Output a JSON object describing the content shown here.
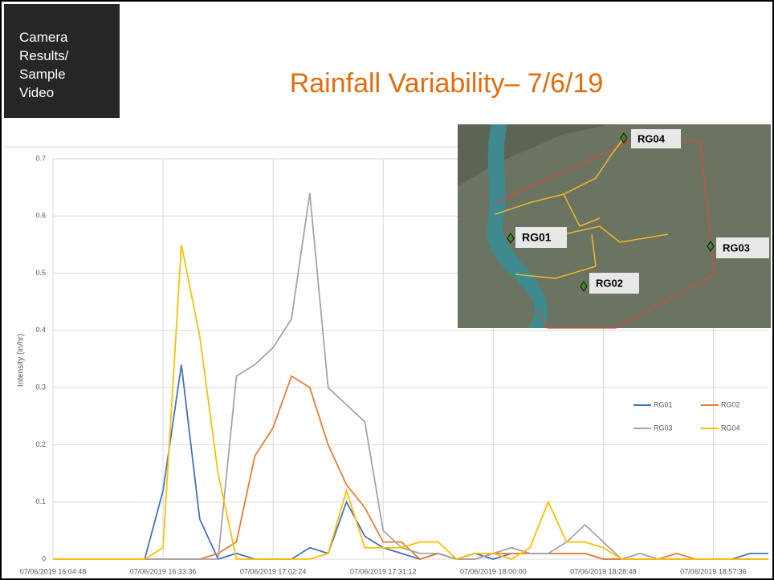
{
  "sidebar_label": [
    "Camera",
    "Results/",
    "Sample",
    "Video"
  ],
  "chart_data": {
    "type": "line",
    "title": "Rainfall Variability– 7/6/19",
    "y_label": "Intensity (in/hr)",
    "categories": [
      "07/06/2019 16:04:48",
      null,
      null,
      null,
      null,
      null,
      "07/06/2019 16:33:36",
      null,
      null,
      null,
      null,
      null,
      "07/06/2019 17:02:24",
      null,
      null,
      null,
      null,
      null,
      "07/06/2019 17:31:12",
      null,
      null,
      null,
      null,
      null,
      "07/06/2019 18:00:00",
      null,
      null,
      null,
      null,
      null,
      "07/06/2019 18:28:48",
      null,
      null,
      null,
      null,
      null,
      "07/06/2019 18:57:36",
      null,
      null,
      null
    ],
    "series": [
      {
        "name": "RG01",
        "color": "#4472c4",
        "values": [
          0,
          0,
          0,
          0,
          0,
          0,
          0.12,
          0.34,
          0.07,
          0,
          0.01,
          0,
          0,
          0,
          0.02,
          0.01,
          0.1,
          0.04,
          0.02,
          0.01,
          0,
          0.01,
          0,
          0.01,
          0,
          0.01,
          0.01,
          0.01,
          0.01,
          0.01,
          0,
          0,
          0,
          0,
          0,
          0,
          0,
          0,
          0.01,
          0.01
        ]
      },
      {
        "name": "RG02",
        "color": "#ed7d31",
        "values": [
          0,
          0,
          0,
          0,
          0,
          0,
          0,
          0,
          0,
          0.01,
          0.03,
          0.18,
          0.23,
          0.32,
          0.3,
          0.2,
          0.13,
          0.09,
          0.03,
          0.03,
          0,
          0.01,
          0,
          0,
          0.01,
          0.01,
          0.01,
          0.01,
          0.01,
          0.01,
          0,
          0,
          0,
          0,
          0.01,
          0,
          0,
          0,
          0,
          0
        ]
      },
      {
        "name": "RG03",
        "color": "#a5a5a5",
        "values": [
          0,
          0,
          0,
          0,
          0,
          0,
          0,
          0,
          0,
          0,
          0.32,
          0.34,
          0.37,
          0.42,
          0.64,
          0.3,
          0.27,
          0.24,
          0.05,
          0.02,
          0.01,
          0.01,
          0,
          0,
          0.01,
          0.02,
          0.01,
          0.01,
          0.03,
          0.06,
          0.03,
          0,
          0.01,
          0,
          0,
          0,
          0,
          0,
          0,
          0
        ]
      },
      {
        "name": "RG04",
        "color": "#ffc000",
        "values": [
          0,
          0,
          0,
          0,
          0,
          0,
          0.02,
          0.55,
          0.39,
          0.15,
          0,
          0,
          0,
          0,
          0,
          0.01,
          0.12,
          0.02,
          0.02,
          0.02,
          0.03,
          0.03,
          0,
          0.01,
          0.01,
          0,
          0.02,
          0.1,
          0.03,
          0.03,
          0.02,
          0,
          0,
          0,
          0,
          0,
          0,
          0,
          0,
          0
        ]
      }
    ],
    "ylim": [
      0,
      0.7
    ],
    "yticks": [
      0,
      0.1,
      0.2,
      0.3,
      0.4,
      0.5,
      0.6,
      0.7
    ],
    "grid": true
  },
  "map": {
    "labels": [
      "RG04",
      "RG01",
      "RG03",
      "RG02"
    ]
  }
}
